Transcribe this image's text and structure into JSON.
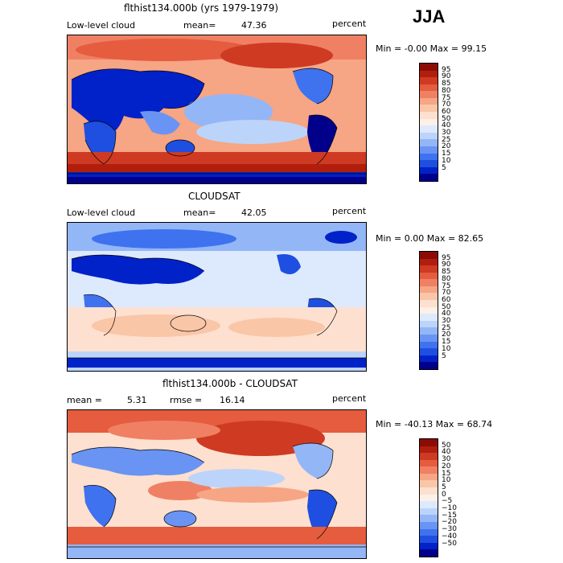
{
  "season": "JJA",
  "colors": {
    "scale": [
      "#00008b",
      "#0022c8",
      "#1f4fe0",
      "#3f72ee",
      "#6a94f3",
      "#93b6f7",
      "#bcd4fa",
      "#dde9fc",
      "#fdf0e6",
      "#fde0cf",
      "#fac6a8",
      "#f6a585",
      "#f08063",
      "#e55c3f",
      "#cf3a22",
      "#b11e0e",
      "#8a0c05"
    ],
    "coast": "#000000"
  },
  "panels": [
    {
      "title": "flthist134.000b (yrs 1979-1979)",
      "left_label": "Low-level cloud",
      "mid_label": "mean=",
      "mid_value": "47.36",
      "right_label": "percent",
      "minmax": "Min =   -0.00 Max =   99.15",
      "levels": [
        "95",
        "90",
        "85",
        "80",
        "75",
        "70",
        "60",
        "50",
        "40",
        "30",
        "25",
        "20",
        "15",
        "10",
        "5"
      ]
    },
    {
      "title": "CLOUDSAT",
      "left_label": "Low-level cloud",
      "mid_label": "mean=",
      "mid_value": "42.05",
      "right_label": "percent",
      "minmax": "Min =    0.00 Max =   82.65",
      "levels": [
        "95",
        "90",
        "85",
        "80",
        "75",
        "70",
        "60",
        "50",
        "40",
        "30",
        "25",
        "20",
        "15",
        "10",
        "5"
      ]
    },
    {
      "title": "flthist134.000b - CLOUDSAT",
      "left_label": "mean =",
      "left_value": "5.31",
      "mid_label": "rmse =",
      "mid_value": "16.14",
      "right_label": "percent",
      "minmax": "Min =  -40.13 Max =   68.74",
      "levels": [
        "50",
        "40",
        "30",
        "20",
        "15",
        "10",
        "5",
        "0",
        "−5",
        "−10",
        "−15",
        "−20",
        "−30",
        "−40",
        "−50"
      ]
    }
  ]
}
